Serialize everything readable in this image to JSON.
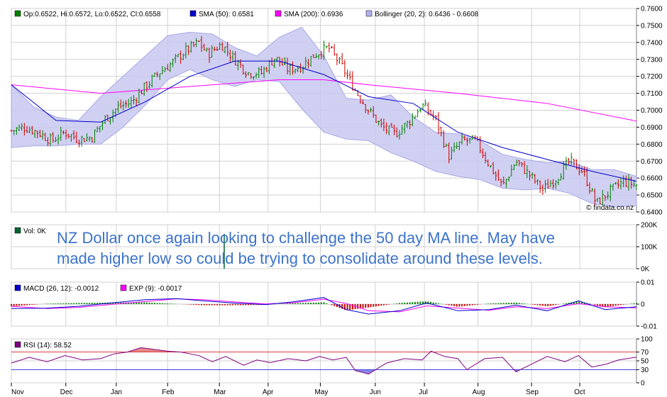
{
  "chart_data": [
    {
      "type": "candlestick",
      "legend": [
        {
          "text": "Op:0.6522, Hi:0.6572, Lo:0.6522, Cl:0.6558",
          "color": "#008000"
        },
        {
          "text": "SMA (50): 0.6581",
          "color": "#0000cc"
        },
        {
          "text": "SMA (200): 0.6936",
          "color": "#ff00ff"
        },
        {
          "text": "Bollinger (20, 2): 0.6436 - 0.6608",
          "color": "#b0b0f0"
        }
      ],
      "ylim": [
        0.64,
        0.76
      ],
      "y_ticks": [
        "0.6400",
        "0.6500",
        "0.6600",
        "0.6700",
        "0.6800",
        "0.6900",
        "0.7000",
        "0.7100",
        "0.7200",
        "0.7300",
        "0.7400",
        "0.7500",
        "0.7600"
      ],
      "close_path": {
        "x": [
          0,
          3,
          6,
          9,
          12,
          15,
          18,
          21,
          24,
          27,
          30,
          33,
          36,
          39,
          42,
          44,
          47,
          50,
          53,
          56,
          59,
          62,
          65,
          68,
          71,
          74,
          77,
          80,
          83,
          86,
          89,
          92,
          95,
          98,
          101,
          104,
          107,
          110,
          113,
          116,
          119,
          122,
          125,
          128,
          131,
          134,
          137,
          140
        ],
        "y": [
          0.688,
          0.69,
          0.687,
          0.682,
          0.687,
          0.683,
          0.684,
          0.695,
          0.702,
          0.705,
          0.714,
          0.722,
          0.728,
          0.735,
          0.74,
          0.733,
          0.739,
          0.73,
          0.722,
          0.722,
          0.731,
          0.724,
          0.726,
          0.733,
          0.737,
          0.726,
          0.712,
          0.7,
          0.69,
          0.686,
          0.693,
          0.703,
          0.695,
          0.673,
          0.682,
          0.682,
          0.668,
          0.655,
          0.67,
          0.662,
          0.653,
          0.66,
          0.67,
          0.664,
          0.645,
          0.652,
          0.658,
          0.656
        ]
      },
      "sma50": {
        "x": [
          0,
          10,
          20,
          30,
          40,
          50,
          60,
          70,
          80,
          90,
          100,
          110,
          120,
          130,
          140
        ],
        "y": [
          0.715,
          0.694,
          0.693,
          0.705,
          0.72,
          0.729,
          0.729,
          0.721,
          0.708,
          0.704,
          0.687,
          0.678,
          0.671,
          0.664,
          0.6581
        ]
      },
      "sma200": {
        "x": [
          0,
          20,
          40,
          60,
          70,
          80,
          100,
          120,
          140
        ],
        "y": [
          0.715,
          0.71,
          0.714,
          0.718,
          0.718,
          0.715,
          0.71,
          0.704,
          0.6936
        ]
      },
      "bollinger": {
        "x": [
          0,
          5,
          10,
          15,
          20,
          25,
          30,
          35,
          40,
          45,
          50,
          55,
          60,
          65,
          70,
          75,
          80,
          85,
          90,
          95,
          100,
          105,
          110,
          115,
          120,
          125,
          130,
          135,
          140
        ],
        "upper": [
          0.715,
          0.702,
          0.696,
          0.694,
          0.708,
          0.72,
          0.732,
          0.744,
          0.746,
          0.745,
          0.737,
          0.732,
          0.743,
          0.749,
          0.732,
          0.707,
          0.706,
          0.709,
          0.696,
          0.687,
          0.686,
          0.682,
          0.674,
          0.671,
          0.669,
          0.67,
          0.665,
          0.665,
          0.661
        ],
        "lower": [
          0.678,
          0.679,
          0.679,
          0.68,
          0.68,
          0.69,
          0.703,
          0.718,
          0.724,
          0.718,
          0.714,
          0.718,
          0.717,
          0.701,
          0.687,
          0.683,
          0.682,
          0.675,
          0.67,
          0.664,
          0.661,
          0.659,
          0.654,
          0.653,
          0.654,
          0.651,
          0.645,
          0.643,
          0.6436
        ]
      },
      "watermark": "© findata.co.nz"
    },
    {
      "type": "bar",
      "legend": [
        {
          "text": "Vol: 0K",
          "color": "#006633"
        }
      ],
      "y_ticks": [
        "200K",
        "100K",
        "0K"
      ],
      "values": [
        0
      ]
    },
    {
      "type": "line",
      "legend": [
        {
          "text": "MACD (26, 12): -0.0012",
          "color": "#0000cc"
        },
        {
          "text": "EXP (9): -0.0017",
          "color": "#ff00ff"
        }
      ],
      "ylim": [
        -0.01,
        0.01
      ],
      "y_ticks": [
        "0.01",
        "0",
        "-0.01"
      ],
      "macd": {
        "x": [
          0,
          8,
          15,
          22,
          30,
          37,
          43,
          50,
          57,
          63,
          70,
          75,
          80,
          87,
          93,
          100,
          107,
          113,
          120,
          127,
          133,
          140
        ],
        "y": [
          -0.002,
          -0.0018,
          -0.001,
          0.0005,
          0.002,
          0.0025,
          0.0015,
          0.0005,
          -0.0002,
          0.001,
          0.003,
          -0.0025,
          -0.0045,
          -0.003,
          0.0005,
          -0.003,
          -0.0025,
          -0.0005,
          -0.003,
          0.0015,
          -0.0025,
          -0.0012
        ]
      },
      "signal": {
        "x": [
          0,
          8,
          15,
          22,
          30,
          37,
          43,
          50,
          57,
          63,
          70,
          75,
          80,
          87,
          93,
          100,
          107,
          113,
          120,
          127,
          133,
          140
        ],
        "y": [
          -0.001,
          -0.002,
          -0.0015,
          -0.0002,
          0.0012,
          0.0024,
          0.002,
          0.001,
          0.0001,
          0.0006,
          0.0022,
          0.0003,
          -0.003,
          -0.0035,
          -0.0008,
          -0.0018,
          -0.0028,
          -0.0012,
          -0.002,
          0.0002,
          -0.0012,
          -0.0017
        ]
      }
    },
    {
      "type": "line",
      "legend": [
        {
          "text": "RSI (14): 58.52",
          "color": "#800080"
        }
      ],
      "ylim": [
        0,
        100
      ],
      "y_ticks": [
        "100",
        "70",
        "50",
        "30",
        "0"
      ],
      "levels": [
        70,
        30
      ],
      "rsi": {
        "x": [
          0,
          4,
          8,
          12,
          16,
          20,
          23,
          26,
          29,
          32,
          35,
          38,
          42,
          45,
          48,
          52,
          55,
          58,
          62,
          66,
          69,
          72,
          75,
          77,
          80,
          84,
          88,
          92,
          94,
          97,
          100,
          102,
          106,
          110,
          113,
          116,
          120,
          124,
          127,
          130,
          133,
          136,
          140
        ],
        "y": [
          45,
          58,
          48,
          62,
          52,
          55,
          66,
          70,
          80,
          76,
          72,
          70,
          62,
          48,
          60,
          40,
          52,
          46,
          55,
          50,
          60,
          52,
          58,
          28,
          20,
          45,
          55,
          52,
          72,
          60,
          55,
          30,
          55,
          58,
          25,
          40,
          60,
          48,
          62,
          36,
          42,
          52,
          58.5
        ]
      }
    }
  ],
  "x_axis": {
    "months": [
      "Nov",
      "Dec",
      "Jan",
      "Feb",
      "Mar",
      "Apr",
      "May",
      "Jun",
      "Jul",
      "Aug",
      "Sep",
      "Oct"
    ],
    "month_positions": [
      0,
      12.2,
      23.5,
      35,
      46.6,
      57.5,
      69.2,
      81.5,
      92.5,
      104.5,
      116.5,
      127.3
    ],
    "range": [
      0,
      140
    ]
  },
  "annotation": {
    "line1": "NZ Dollar once again looking to challenge the 50 day MA line. May have",
    "line2": "made higher low so could be trying to consolidate around these levels."
  },
  "colors": {
    "up_candle": "#008000",
    "down_candle": "#cc0000",
    "bollinger_fill": "#c8c8f0",
    "bollinger_edge": "#a8a8e8",
    "grid": "#d0d0d0",
    "annotation_text": "#3d73c9"
  }
}
